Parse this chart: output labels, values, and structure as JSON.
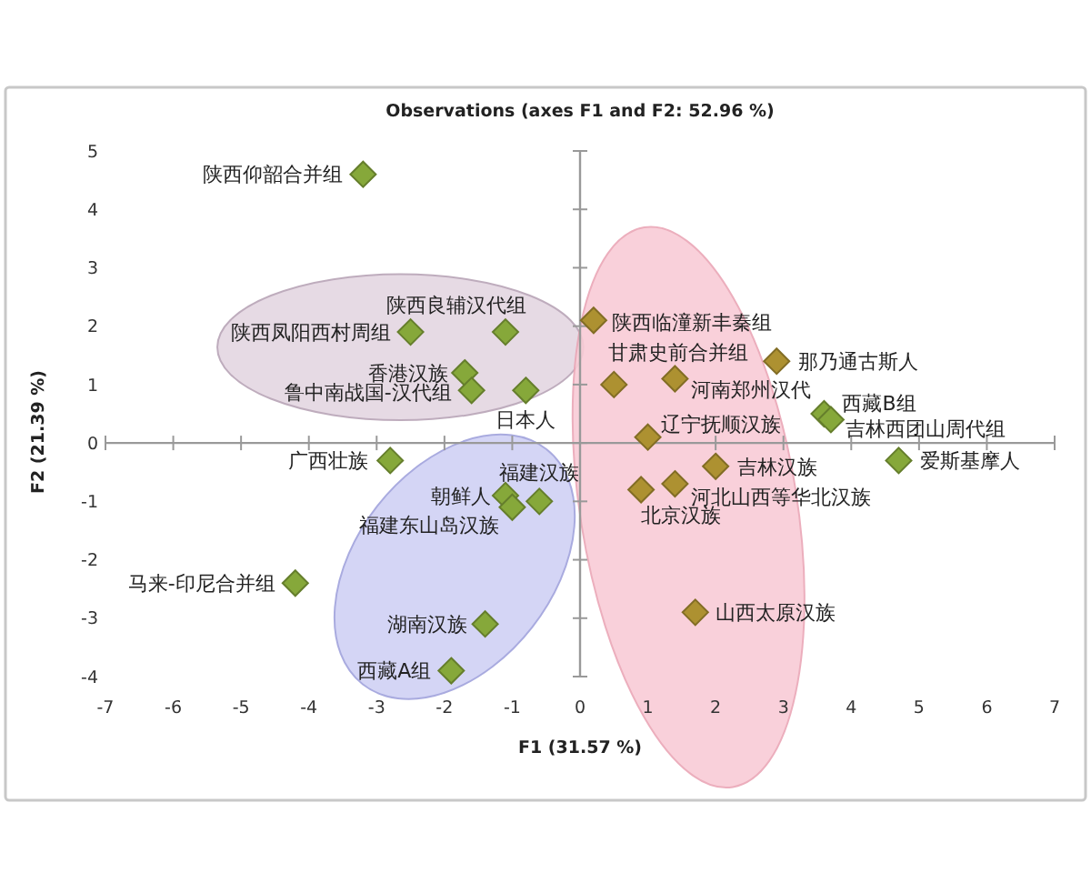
{
  "chart_data": {
    "type": "scatter",
    "title": "Observations (axes F1 and F2: 52.96 %)",
    "xlabel": "F1 (31.57 %)",
    "ylabel": "F2 (21.39 %)",
    "marker": "diamond",
    "x": [
      -3.2,
      -2.5,
      -1.1,
      -1.7,
      -1.6,
      -0.8,
      -2.8,
      -1.1,
      -1.0,
      -0.6,
      -4.2,
      -1.4,
      -1.9,
      0.2,
      0.5,
      1.4,
      2.9,
      3.6,
      3.7,
      1.0,
      2.0,
      1.4,
      0.9,
      1.7,
      4.7
    ],
    "values": [
      4.6,
      1.9,
      1.9,
      1.2,
      0.9,
      0.9,
      -0.3,
      -0.9,
      -1.1,
      -1.0,
      -2.4,
      -3.1,
      -3.9,
      2.1,
      1.0,
      1.1,
      1.4,
      0.5,
      0.4,
      0.1,
      -0.4,
      -0.7,
      -0.8,
      -2.9,
      -0.3
    ],
    "colors": [
      "#86a83a",
      "#86a83a",
      "#86a83a",
      "#86a83a",
      "#86a83a",
      "#86a83a",
      "#86a83a",
      "#86a83a",
      "#86a83a",
      "#86a83a",
      "#86a83a",
      "#86a83a",
      "#86a83a",
      "#ad9131",
      "#ad9131",
      "#ad9131",
      "#ad9131",
      "#86a83a",
      "#86a83a",
      "#ad9131",
      "#ad9131",
      "#ad9131",
      "#ad9131",
      "#ad9131",
      "#86a83a"
    ],
    "xlim": [
      -7,
      7
    ],
    "ylim": [
      -4,
      5
    ],
    "xticks": [
      -7,
      -6,
      -5,
      -4,
      -3,
      -2,
      -1,
      0,
      1,
      2,
      3,
      4,
      5,
      6,
      7
    ],
    "yticks": [
      -4,
      -3,
      -2,
      -1,
      0,
      1,
      2,
      3,
      4,
      5
    ],
    "annotations": [
      {
        "text": "陕西仰韶合并组",
        "x": -3.2,
        "y": 4.6
      },
      {
        "text": "陕西凤阳西村周组",
        "x": -2.5,
        "y": 1.9
      },
      {
        "text": "陕西良辅汉代组",
        "x": -1.1,
        "y": 1.9
      },
      {
        "text": "香港汉族",
        "x": -1.7,
        "y": 1.2
      },
      {
        "text": "鲁中南战国-汉代组",
        "x": -1.6,
        "y": 0.9
      },
      {
        "text": "日本人",
        "x": -0.8,
        "y": 0.9
      },
      {
        "text": "广西壮族",
        "x": -2.8,
        "y": -0.3
      },
      {
        "text": "朝鲜人",
        "x": -1.1,
        "y": -0.9
      },
      {
        "text": "福建东山岛汉族",
        "x": -1.0,
        "y": -1.1
      },
      {
        "text": "福建汉族",
        "x": -0.6,
        "y": -1.0
      },
      {
        "text": "马来-印尼合并组",
        "x": -4.2,
        "y": -2.4
      },
      {
        "text": "湖南汉族",
        "x": -1.4,
        "y": -3.1
      },
      {
        "text": "西藏A组",
        "x": -1.9,
        "y": -3.9
      },
      {
        "text": "陕西临潼新丰秦组",
        "x": 0.2,
        "y": 2.1
      },
      {
        "text": "甘肃史前合并组",
        "x": 0.5,
        "y": 1.0
      },
      {
        "text": "河南郑州汉代",
        "x": 1.4,
        "y": 1.1
      },
      {
        "text": "那乃通古斯人",
        "x": 2.9,
        "y": 1.4
      },
      {
        "text": "西藏B组",
        "x": 3.6,
        "y": 0.5
      },
      {
        "text": "吉林西团山周代组",
        "x": 3.7,
        "y": 0.4
      },
      {
        "text": "辽宁抚顺汉族",
        "x": 1.0,
        "y": 0.1
      },
      {
        "text": "吉林汉族",
        "x": 2.0,
        "y": -0.4
      },
      {
        "text": "河北山西等华北汉族",
        "x": 1.4,
        "y": -0.7
      },
      {
        "text": "北京汉族",
        "x": 0.9,
        "y": -0.8
      },
      {
        "text": "山西太原汉族",
        "x": 1.7,
        "y": -2.9
      },
      {
        "text": "爱斯基摩人",
        "x": 4.7,
        "y": -0.3
      }
    ]
  }
}
